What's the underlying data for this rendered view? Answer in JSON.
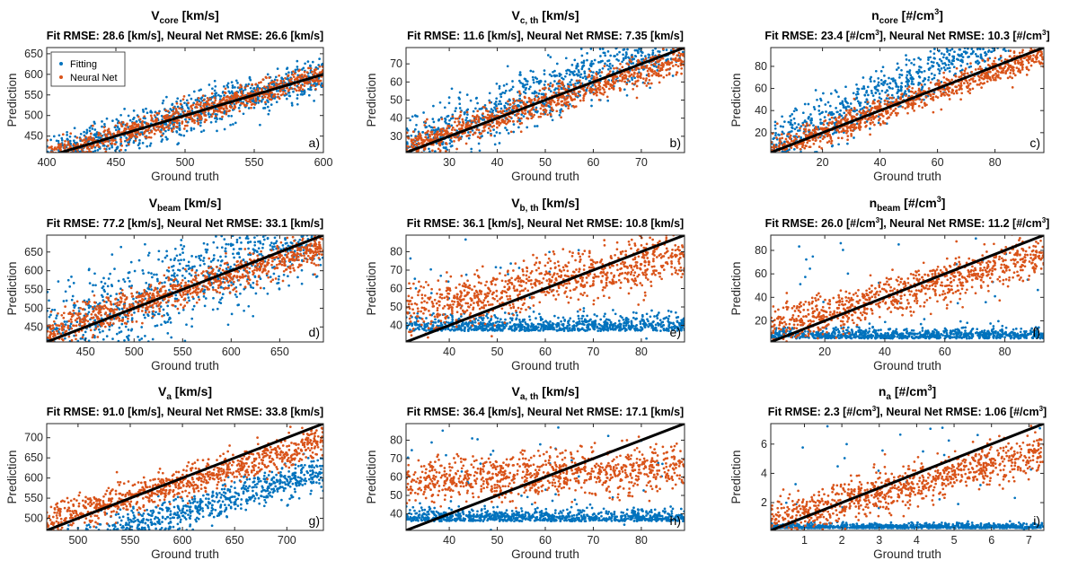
{
  "figure": {
    "legend": {
      "fitting": "Fitting",
      "neural_net": "Neural Net"
    },
    "colors": {
      "fitting": "#0072BD",
      "neural_net": "#D95319",
      "identity_line": "#000000",
      "axes": "#262626"
    }
  },
  "chart_data": [
    {
      "type": "scatter",
      "panel_label": "a)",
      "title_main": "V",
      "title_sub": "core",
      "title_unit": "[km/s]",
      "subtitle": "Fit RMSE: 28.6  [km/s], Neural Net RMSE: 26.6  [km/s]",
      "xlabel": "Ground truth",
      "ylabel": "Prediction",
      "xlim": [
        400,
        600
      ],
      "ylim": [
        410,
        665
      ],
      "xticks": [
        400,
        450,
        500,
        550,
        600
      ],
      "yticks": [
        450,
        500,
        550,
        600,
        650
      ],
      "legend_entries": [
        "Fitting",
        "Neural Net"
      ],
      "series": [
        {
          "name": "Fitting",
          "color": "#0072BD",
          "relation": {
            "slope": 1.0,
            "intercept": 0,
            "noise": 24,
            "x_skew": 0.5
          }
        },
        {
          "name": "Neural Net",
          "color": "#D95319",
          "relation": {
            "slope": 1.0,
            "intercept": 0,
            "noise": 14
          }
        }
      ],
      "identity_line": {
        "from": [
          400,
          400
        ],
        "to": [
          600,
          600
        ]
      }
    },
    {
      "type": "scatter",
      "panel_label": "b)",
      "title_main": "V",
      "title_sub": "c, th",
      "title_unit": "[km/s]",
      "subtitle": "Fit RMSE: 11.6  [km/s], Neural Net RMSE: 7.35  [km/s]",
      "xlabel": "Ground truth",
      "ylabel": "Prediction",
      "xlim": [
        21,
        79
      ],
      "ylim": [
        21,
        79
      ],
      "xticks": [
        30,
        40,
        50,
        60,
        70
      ],
      "yticks": [
        30,
        40,
        50,
        60,
        70
      ],
      "series": [
        {
          "name": "Fitting",
          "color": "#0072BD",
          "relation": {
            "slope": 1.05,
            "intercept": 2,
            "noise": 8
          }
        },
        {
          "name": "Neural Net",
          "color": "#D95319",
          "relation": {
            "slope": 0.85,
            "intercept": 6,
            "noise": 4
          }
        }
      ],
      "identity_line": {
        "from": [
          21,
          21
        ],
        "to": [
          79,
          79
        ]
      }
    },
    {
      "type": "scatter",
      "panel_label": "c)",
      "title_main": "n",
      "title_sub": "core",
      "title_unit": "[#/cm",
      "title_sup": "3",
      "title_unit_end": "]",
      "subtitle": "Fit RMSE: 23.4  [#/cm^3], Neural Net RMSE: 10.3  [#/cm^3]",
      "subtitle_parts": [
        "Fit RMSE: 23.4  [#/cm",
        "3",
        "], Neural Net RMSE: 10.3  [#/cm",
        "3",
        "]"
      ],
      "xlabel": "Ground truth",
      "ylabel": "Prediction",
      "xlim": [
        2,
        97
      ],
      "ylim": [
        2,
        97
      ],
      "xticks": [
        20,
        40,
        60,
        80
      ],
      "yticks": [
        20,
        40,
        60,
        80
      ],
      "series": [
        {
          "name": "Fitting",
          "color": "#0072BD",
          "relation": {
            "slope": 1.25,
            "intercept": 5,
            "noise": 12
          }
        },
        {
          "name": "Neural Net",
          "color": "#D95319",
          "relation": {
            "slope": 0.92,
            "intercept": 2,
            "noise": 6
          }
        }
      ],
      "identity_line": {
        "from": [
          2,
          2
        ],
        "to": [
          97,
          97
        ]
      }
    },
    {
      "type": "scatter",
      "panel_label": "d)",
      "title_main": "V",
      "title_sub": "beam",
      "title_unit": "[km/s]",
      "subtitle": "Fit RMSE: 77.2  [km/s], Neural Net RMSE: 33.1  [km/s]",
      "xlabel": "Ground truth",
      "ylabel": "Prediction",
      "xlim": [
        410,
        695
      ],
      "ylim": [
        410,
        695
      ],
      "xticks": [
        450,
        500,
        550,
        600,
        650
      ],
      "yticks": [
        450,
        500,
        550,
        600,
        650
      ],
      "series": [
        {
          "name": "Fitting",
          "color": "#0072BD",
          "relation": {
            "slope": 1.0,
            "intercept": 20,
            "noise": 60
          }
        },
        {
          "name": "Neural Net",
          "color": "#D95319",
          "relation": {
            "slope": 0.8,
            "intercept": 110,
            "noise": 22
          }
        }
      ],
      "identity_line": {
        "from": [
          410,
          410
        ],
        "to": [
          695,
          695
        ]
      }
    },
    {
      "type": "scatter",
      "panel_label": "e)",
      "title_main": "V",
      "title_sub": "b, th",
      "title_unit": "[km/s]",
      "subtitle": "Fit RMSE: 36.1  [km/s], Neural Net RMSE: 10.8  [km/s]",
      "xlabel": "Ground truth",
      "ylabel": "Prediction",
      "xlim": [
        31,
        89
      ],
      "ylim": [
        31,
        89
      ],
      "xticks": [
        40,
        50,
        60,
        70,
        80
      ],
      "yticks": [
        40,
        50,
        60,
        70,
        80
      ],
      "series": [
        {
          "name": "Fitting",
          "color": "#0072BD",
          "relation": {
            "flat": true,
            "center": 37,
            "noise": 4
          }
        },
        {
          "name": "Neural Net",
          "color": "#D95319",
          "relation": {
            "slope": 0.55,
            "intercept": 30,
            "noise": 7
          }
        }
      ],
      "identity_line": {
        "from": [
          31,
          31
        ],
        "to": [
          89,
          89
        ]
      }
    },
    {
      "type": "scatter",
      "panel_label": "f)",
      "title_main": "n",
      "title_sub": "beam",
      "title_unit": "[#/cm",
      "title_sup": "3",
      "title_unit_end": "]",
      "subtitle": "Fit RMSE: 26.0  [#/cm^3], Neural Net RMSE: 11.2  [#/cm^3]",
      "subtitle_parts": [
        "Fit RMSE: 26.0  [#/cm",
        "3",
        "], Neural Net RMSE: 11.2  [#/cm",
        "3",
        "]"
      ],
      "xlabel": "Ground truth",
      "ylabel": "Prediction",
      "xlim": [
        2,
        93
      ],
      "ylim": [
        2,
        93
      ],
      "xticks": [
        20,
        40,
        60,
        80
      ],
      "yticks": [
        20,
        40,
        60,
        80
      ],
      "series": [
        {
          "name": "Fitting",
          "color": "#0072BD",
          "relation": {
            "flat": true,
            "center": 5,
            "noise": 4
          }
        },
        {
          "name": "Neural Net",
          "color": "#D95319",
          "relation": {
            "slope": 0.7,
            "intercept": 12,
            "noise": 9
          }
        }
      ],
      "identity_line": {
        "from": [
          2,
          2
        ],
        "to": [
          93,
          93
        ]
      }
    },
    {
      "type": "scatter",
      "panel_label": "g)",
      "title_main": "V",
      "title_sub": "a",
      "title_unit": "[km/s]",
      "subtitle": "Fit RMSE: 91.0  [km/s], Neural Net RMSE: 33.8  [km/s]",
      "xlabel": "Ground truth",
      "ylabel": "Prediction",
      "xlim": [
        470,
        735
      ],
      "ylim": [
        470,
        735
      ],
      "xticks": [
        500,
        550,
        600,
        650,
        700
      ],
      "yticks": [
        500,
        550,
        600,
        650,
        700
      ],
      "series": [
        {
          "name": "Fitting",
          "color": "#0072BD",
          "relation": {
            "slope": 0.75,
            "intercept": 65,
            "noise": 22
          }
        },
        {
          "name": "Neural Net",
          "color": "#D95319",
          "relation": {
            "slope": 0.75,
            "intercept": 140,
            "noise": 20
          }
        }
      ],
      "identity_line": {
        "from": [
          470,
          470
        ],
        "to": [
          735,
          735
        ]
      }
    },
    {
      "type": "scatter",
      "panel_label": "h)",
      "title_main": "V",
      "title_sub": "a, th",
      "title_unit": "[km/s]",
      "subtitle": "Fit RMSE: 36.4  [km/s], Neural Net RMSE: 17.1  [km/s]",
      "xlabel": "Ground truth",
      "ylabel": "Prediction",
      "xlim": [
        31,
        89
      ],
      "ylim": [
        31,
        89
      ],
      "xticks": [
        40,
        50,
        60,
        70,
        80
      ],
      "yticks": [
        40,
        50,
        60,
        70,
        80
      ],
      "series": [
        {
          "name": "Fitting",
          "color": "#0072BD",
          "relation": {
            "flat": true,
            "center": 36,
            "noise": 3
          }
        },
        {
          "name": "Neural Net",
          "color": "#D95319",
          "relation": {
            "slope": 0.15,
            "intercept": 52,
            "noise": 6
          }
        }
      ],
      "identity_line": {
        "from": [
          31,
          31
        ],
        "to": [
          89,
          89
        ]
      }
    },
    {
      "type": "scatter",
      "panel_label": "i)",
      "title_main": "n",
      "title_sub": "a",
      "title_unit": "[#/cm",
      "title_sup": "3",
      "title_unit_end": "]",
      "subtitle": "Fit RMSE: 2.3  [#/cm^3], Neural Net RMSE: 1.06  [#/cm^3]",
      "subtitle_parts": [
        "Fit RMSE: 2.3  [#/cm",
        "3",
        "], Neural Net RMSE: 1.06  [#/cm",
        "3",
        "]"
      ],
      "xlabel": "Ground truth",
      "ylabel": "Prediction",
      "xlim": [
        0.1,
        7.4
      ],
      "ylim": [
        0.1,
        7.4
      ],
      "xticks": [
        1,
        2,
        3,
        4,
        5,
        6,
        7
      ],
      "yticks": [
        2,
        4,
        6
      ],
      "series": [
        {
          "name": "Fitting",
          "color": "#0072BD",
          "relation": {
            "flat": true,
            "center": 0.25,
            "noise": 0.15
          }
        },
        {
          "name": "Neural Net",
          "color": "#D95319",
          "relation": {
            "slope": 0.65,
            "intercept": 0.7,
            "noise": 0.7
          }
        }
      ],
      "identity_line": {
        "from": [
          0.1,
          0.1
        ],
        "to": [
          7.4,
          7.4
        ]
      }
    }
  ]
}
